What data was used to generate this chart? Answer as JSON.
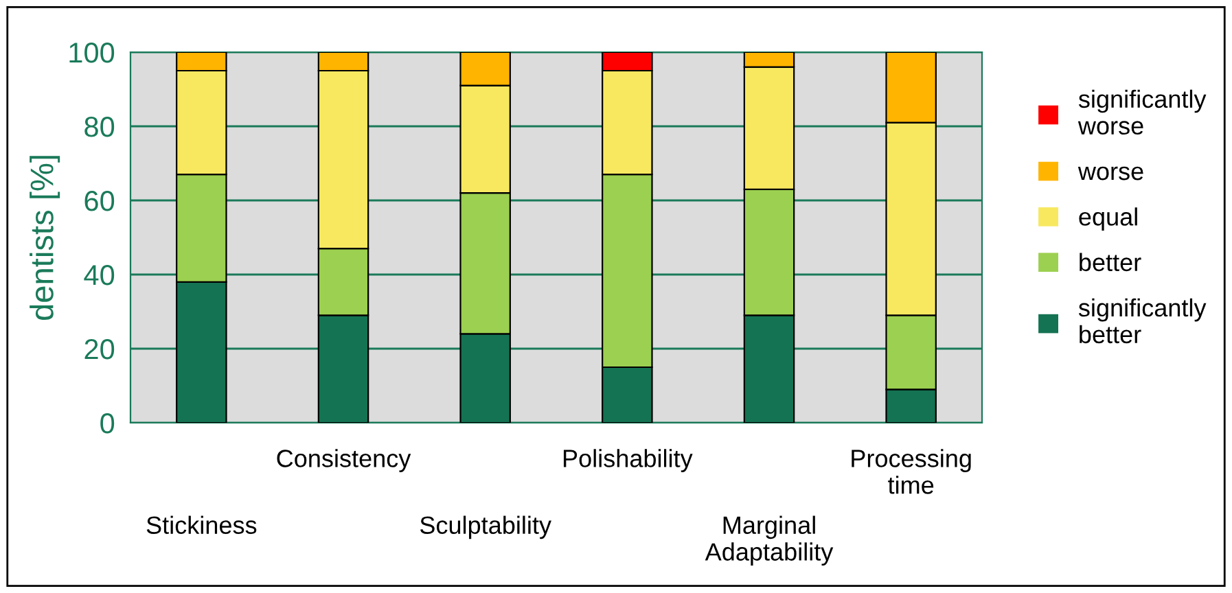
{
  "chart_data": {
    "type": "bar",
    "stacked": true,
    "ylabel": "dentists [%]",
    "categories": [
      "Stickiness",
      "Consistency",
      "Sculptability",
      "Polishability",
      "Marginal\nAdaptability",
      "Processing\ntime"
    ],
    "series": [
      {
        "name": "significantly\nbetter",
        "color": "#147352",
        "values": [
          38,
          29,
          24,
          15,
          29,
          9
        ]
      },
      {
        "name": "better",
        "color": "#9cd050",
        "values": [
          29,
          18,
          38,
          52,
          34,
          20
        ]
      },
      {
        "name": "equal",
        "color": "#f8e860",
        "values": [
          28,
          48,
          29,
          28,
          33,
          52
        ]
      },
      {
        "name": "worse",
        "color": "#ffb400",
        "values": [
          5,
          5,
          9,
          0,
          4,
          19
        ]
      },
      {
        "name": "significantly\nworse",
        "color": "#ff0000",
        "values": [
          0,
          0,
          0,
          5,
          0,
          0
        ]
      }
    ],
    "ylim": [
      0,
      100
    ],
    "yticks": [
      0,
      20,
      40,
      60,
      80,
      100
    ],
    "grid": "y",
    "legend": "right"
  }
}
